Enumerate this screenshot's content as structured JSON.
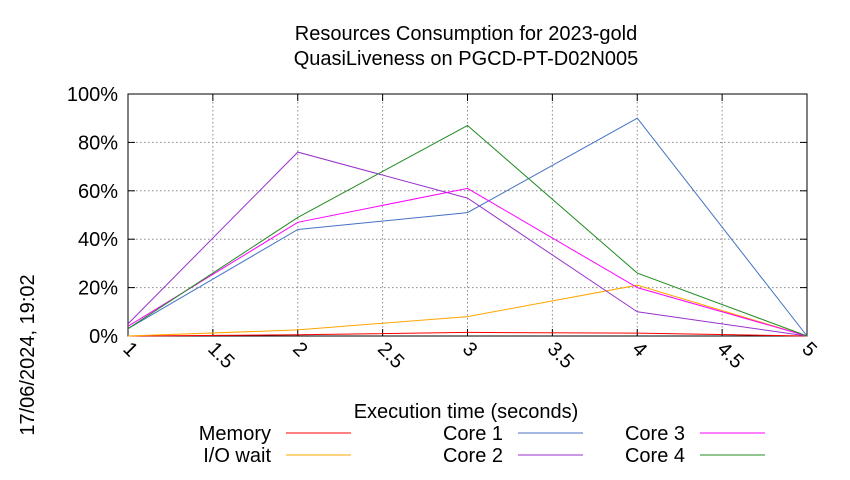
{
  "timestamp": "17/06/2024, 19:02",
  "chart_data": {
    "type": "line",
    "title_line1": "Resources Consumption for 2023-gold",
    "title_line2": "QuasiLiveness on PGCD-PT-D02N005",
    "xlabel": "Execution time (seconds)",
    "ylabel": "",
    "xlim": [
      1,
      5
    ],
    "ylim": [
      0,
      100
    ],
    "grid": true,
    "legend_position": "bottom",
    "x_ticks": [
      "1",
      "1.5",
      "2",
      "2.5",
      "3",
      "3.5",
      "4",
      "4.5",
      "5"
    ],
    "y_ticks": [
      "0%",
      "20%",
      "40%",
      "60%",
      "80%",
      "100%"
    ],
    "x": [
      1,
      2,
      3,
      4,
      5
    ],
    "series": [
      {
        "name": "Memory",
        "color": "#ff0000",
        "values": [
          0,
          0.5,
          1.5,
          1.2,
          0
        ]
      },
      {
        "name": "I/O wait",
        "color": "#ffa500",
        "values": [
          0,
          2.5,
          8,
          21,
          0
        ]
      },
      {
        "name": "Core 1",
        "color": "#4472c4",
        "values": [
          3,
          44,
          51,
          90,
          0
        ]
      },
      {
        "name": "Core 2",
        "color": "#9932cc",
        "values": [
          5,
          76,
          57,
          10,
          0
        ]
      },
      {
        "name": "Core 3",
        "color": "#ff00ff",
        "values": [
          4,
          47,
          61,
          20,
          0
        ]
      },
      {
        "name": "Core 4",
        "color": "#228b22",
        "values": [
          3,
          49,
          87,
          26,
          0
        ]
      }
    ]
  }
}
